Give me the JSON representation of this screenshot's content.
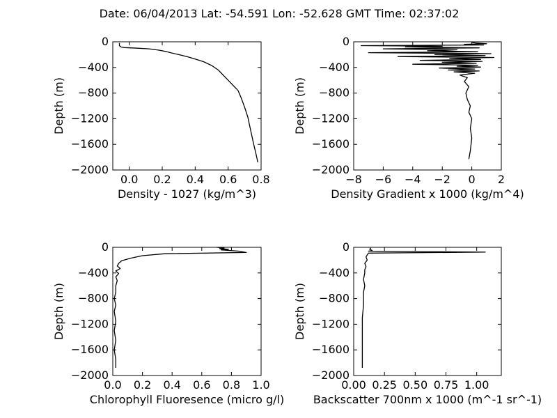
{
  "title": "Date: 06/04/2013  Lat:  -54.591 Lon:  -52.628  GMT Time: 02:37:02",
  "chart_data": [
    {
      "id": "density",
      "type": "line",
      "xlabel": "Density - 1027 (kg/m^3)",
      "ylabel": "Depth (m)",
      "xlim": [
        -0.1,
        0.8
      ],
      "ylim": [
        -2000,
        0
      ],
      "xticks": [
        0.0,
        0.2,
        0.4,
        0.6,
        0.8
      ],
      "xtick_labels": [
        "0.0",
        "0.2",
        "0.4",
        "0.6",
        "0.8"
      ],
      "yticks": [
        0,
        -400,
        -800,
        -1200,
        -1600,
        -2000
      ],
      "ytick_labels": [
        "0",
        "−400",
        "−800",
        "−1200",
        "−1600",
        "−2000"
      ],
      "x": [
        -0.06,
        -0.06,
        -0.05,
        -0.03,
        0.05,
        0.12,
        0.18,
        0.22,
        0.25,
        0.3,
        0.35,
        0.4,
        0.45,
        0.5,
        0.54,
        0.57,
        0.6,
        0.63,
        0.66,
        0.68,
        0.7,
        0.72,
        0.73,
        0.74,
        0.75,
        0.76,
        0.77,
        0.78
      ],
      "y": [
        -20,
        -60,
        -80,
        -90,
        -100,
        -110,
        -130,
        -150,
        -170,
        -200,
        -230,
        -270,
        -310,
        -370,
        -440,
        -520,
        -600,
        -680,
        -760,
        -880,
        -1020,
        -1180,
        -1300,
        -1420,
        -1540,
        -1650,
        -1760,
        -1880
      ]
    },
    {
      "id": "density-gradient",
      "type": "line",
      "xlabel": "Density Gradient x 1000 (kg/m^4)",
      "ylabel": "Depth (m)",
      "xlim": [
        -8,
        2
      ],
      "ylim": [
        -2000,
        0
      ],
      "xticks": [
        -8,
        -6,
        -4,
        -2,
        0,
        2
      ],
      "xtick_labels": [
        "−8",
        "−6",
        "−4",
        "−2",
        "0",
        "2"
      ],
      "yticks": [
        0,
        -400,
        -800,
        -1200,
        -1600,
        -2000
      ],
      "ytick_labels": [
        "0",
        "−400",
        "−800",
        "−1200",
        "−1600",
        "−2000"
      ],
      "x": [
        0.0,
        0.3,
        1.0,
        -0.5,
        0.8,
        -7.5,
        -2.0,
        -4.5,
        0.5,
        -6.0,
        -1.0,
        -3.0,
        0.4,
        -7.0,
        1.3,
        -2.5,
        0.9,
        -5.0,
        1.5,
        -1.5,
        0.6,
        -3.5,
        0.7,
        -2.0,
        0.3,
        -4.0,
        0.4,
        -1.0,
        0.6,
        -2.2,
        0.2,
        -1.6,
        0.5,
        -1.2,
        0.2,
        -0.8,
        -0.3,
        -0.5,
        -0.2,
        -0.4,
        -0.3,
        -0.1,
        -0.2,
        0.0,
        -0.1,
        0.0,
        -0.1,
        -0.2
      ],
      "y": [
        -10,
        -20,
        -30,
        -40,
        -50,
        -60,
        -70,
        -80,
        -95,
        -110,
        -125,
        -140,
        -155,
        -170,
        -185,
        -200,
        -215,
        -230,
        -245,
        -260,
        -275,
        -290,
        -305,
        -320,
        -335,
        -350,
        -365,
        -380,
        -395,
        -410,
        -425,
        -440,
        -455,
        -470,
        -490,
        -520,
        -560,
        -620,
        -700,
        -800,
        -900,
        -1000,
        -1100,
        -1200,
        -1350,
        -1500,
        -1700,
        -1830
      ]
    },
    {
      "id": "chlorophyll",
      "type": "line",
      "xlabel": "Chlorophyll Fluoresence (micro g/l)",
      "ylabel": "Depth (m)",
      "xlim": [
        0.0,
        1.0
      ],
      "ylim": [
        -2000,
        0
      ],
      "xticks": [
        0.0,
        0.2,
        0.4,
        0.6,
        0.8,
        1.0
      ],
      "xtick_labels": [
        "0.0",
        "0.2",
        "0.4",
        "0.6",
        "0.8",
        "1.0"
      ],
      "yticks": [
        0,
        -400,
        -800,
        -1200,
        -1600,
        -2000
      ],
      "ytick_labels": [
        "0",
        "−400",
        "−800",
        "−1200",
        "−1600",
        "−2000"
      ],
      "x": [
        0.7,
        0.75,
        0.72,
        0.78,
        0.73,
        0.85,
        0.9,
        0.35,
        0.2,
        0.12,
        0.06,
        0.04,
        0.03,
        0.05,
        0.02,
        0.04,
        0.02,
        0.03,
        0.02,
        0.02,
        0.01,
        0.02,
        0.01,
        0.02,
        0.01,
        0.02,
        0.01,
        0.02,
        0.02
      ],
      "y": [
        0,
        -10,
        -20,
        -30,
        -40,
        -60,
        -80,
        -100,
        -130,
        -170,
        -210,
        -250,
        -290,
        -330,
        -370,
        -410,
        -460,
        -520,
        -600,
        -700,
        -800,
        -900,
        -1000,
        -1150,
        -1300,
        -1450,
        -1600,
        -1750,
        -1880
      ]
    },
    {
      "id": "backscatter",
      "type": "line",
      "xlabel": "Backscatter 700nm x 1000 (m^-1 sr^-1)",
      "ylabel": "Depth (m)",
      "xlim": [
        0.0,
        1.2
      ],
      "ylim": [
        -2000,
        0
      ],
      "xticks": [
        0.0,
        0.25,
        0.5,
        0.75,
        1.0
      ],
      "xtick_labels": [
        "0.00",
        "0.25",
        "0.50",
        "0.75",
        "1.00"
      ],
      "yticks": [
        0,
        -400,
        -800,
        -1200,
        -1600,
        -2000
      ],
      "ytick_labels": [
        "0",
        "−400",
        "−800",
        "−1200",
        "−1600",
        "−2000"
      ],
      "x": [
        0.14,
        0.13,
        0.15,
        0.12,
        1.07,
        0.12,
        0.11,
        0.1,
        0.11,
        0.09,
        0.1,
        0.09,
        0.09,
        0.08,
        0.09,
        0.08,
        0.08,
        0.08,
        0.07,
        0.07,
        0.07,
        0.07,
        0.07
      ],
      "y": [
        -10,
        -30,
        -50,
        -60,
        -75,
        -90,
        -120,
        -150,
        -200,
        -250,
        -300,
        -350,
        -400,
        -500,
        -600,
        -700,
        -800,
        -900,
        -1100,
        -1300,
        -1500,
        -1700,
        -1880
      ]
    }
  ]
}
